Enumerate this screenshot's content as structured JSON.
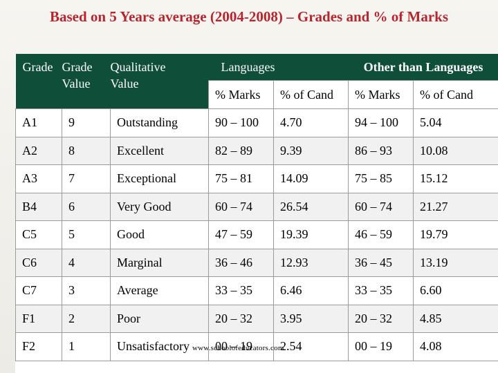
{
  "title": "Based on 5 Years average (2004-2008) – Grades and % of Marks",
  "header": {
    "grade": "Grade",
    "grade_value_line1": "Grade",
    "grade_value_line2": "Value",
    "qualitative_line1": "Qualitative",
    "qualitative_line2": "Value",
    "languages": "Languages",
    "other_languages": "Other than Languages",
    "pct_marks": "% Marks",
    "pct_cand": "% of Cand"
  },
  "rows": [
    {
      "grade": "A1",
      "value": "9",
      "qualitative": "Outstanding",
      "lang_marks": "90 – 100",
      "lang_cand": "4.70",
      "other_marks": "94 – 100",
      "other_cand": "5.04"
    },
    {
      "grade": "A2",
      "value": "8",
      "qualitative": "Excellent",
      "lang_marks": "82 – 89",
      "lang_cand": "9.39",
      "other_marks": "86 – 93",
      "other_cand": "10.08"
    },
    {
      "grade": "A3",
      "value": "7",
      "qualitative": "Exceptional",
      "lang_marks": "75 – 81",
      "lang_cand": "14.09",
      "other_marks": "75 – 85",
      "other_cand": "15.12"
    },
    {
      "grade": "B4",
      "value": "6",
      "qualitative": "Very Good",
      "lang_marks": "60 – 74",
      "lang_cand": "26.54",
      "other_marks": "60 – 74",
      "other_cand": "21.27"
    },
    {
      "grade": "C5",
      "value": "5",
      "qualitative": "Good",
      "lang_marks": "47 – 59",
      "lang_cand": "19.39",
      "other_marks": "46 – 59",
      "other_cand": "19.79"
    },
    {
      "grade": "C6",
      "value": "4",
      "qualitative": "Marginal",
      "lang_marks": "36 – 46",
      "lang_cand": "12.93",
      "other_marks": "36 – 45",
      "other_cand": "13.19"
    },
    {
      "grade": "C7",
      "value": "3",
      "qualitative": "Average",
      "lang_marks": "33 – 35",
      "lang_cand": "6.46",
      "other_marks": "33 – 35",
      "other_cand": "6.60"
    },
    {
      "grade": "F1",
      "value": "2",
      "qualitative": "Poor",
      "lang_marks": "20 – 32",
      "lang_cand": "3.95",
      "other_marks": "20 – 32",
      "other_cand": "4.85"
    },
    {
      "grade": "F2",
      "value": "1",
      "qualitative": "Unsatisfactory",
      "lang_marks": "00 – 19",
      "lang_cand": "2.54",
      "other_marks": "00 – 19",
      "other_cand": "4.08"
    }
  ],
  "watermark": "www.schoolofeducators.com",
  "colors": {
    "title": "#b8252e",
    "header_bg": "#0f4f3a"
  }
}
